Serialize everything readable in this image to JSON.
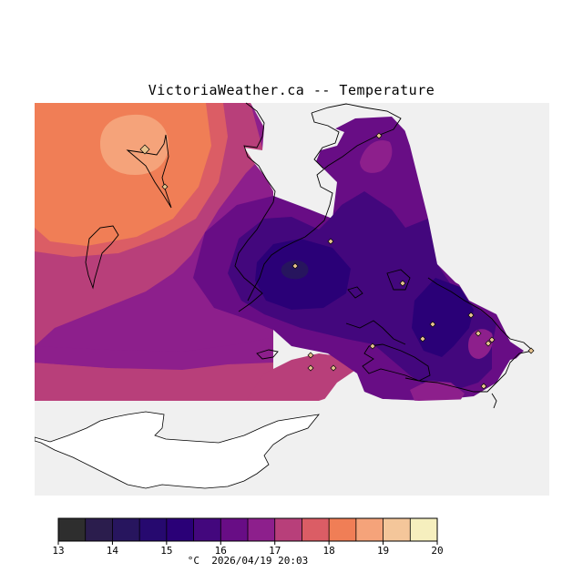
{
  "header": {
    "title": "VictoriaWeather.ca -- Temperature"
  },
  "legend": {
    "min": 13,
    "max": 20,
    "tick_labels": [
      "13",
      "14",
      "15",
      "16",
      "17",
      "18",
      "19",
      "20"
    ],
    "unit_label": "°C",
    "timestamp": "2026/04/19 20:03",
    "colors": [
      "#2e2e2e",
      "#2b1d4d",
      "#27155e",
      "#26096f",
      "#2a0077",
      "#43077d",
      "#680d85",
      "#8d1f8c",
      "#b83f7a",
      "#db5d65",
      "#f07e56",
      "#f5a37a",
      "#f4c69a",
      "#f6efbe"
    ]
  },
  "map": {
    "description_colors": {
      "water_mask": "#f0f0f0",
      "land_no_data": "#ffffff",
      "station_marker": "#e0b880"
    },
    "stations_count": 16
  }
}
